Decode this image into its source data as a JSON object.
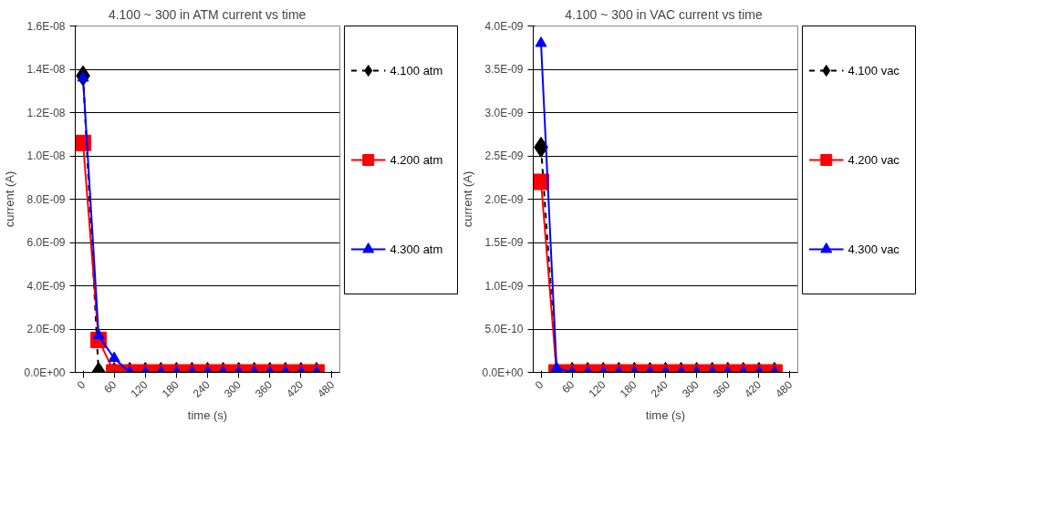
{
  "chart_data": [
    {
      "type": "line",
      "title": "4.100 ~ 300 in ATM current vs time",
      "xlabel": "time (s)",
      "ylabel": "current (A)",
      "x": [
        0,
        30,
        60,
        90,
        120,
        150,
        180,
        210,
        240,
        270,
        300,
        330,
        360,
        390,
        420,
        450
      ],
      "xlim": [
        -15,
        495
      ],
      "xticks": [
        0,
        60,
        120,
        180,
        240,
        300,
        360,
        420,
        480
      ],
      "ylim": [
        0,
        1.6e-08
      ],
      "yticks": [
        {
          "value": 0,
          "label": "0.0E+00"
        },
        {
          "value": 2e-09,
          "label": "2.0E-09"
        },
        {
          "value": 4e-09,
          "label": "4.0E-09"
        },
        {
          "value": 6e-09,
          "label": "6.0E-09"
        },
        {
          "value": 8e-09,
          "label": "8.0E-09"
        },
        {
          "value": 1e-08,
          "label": "1.0E-08"
        },
        {
          "value": 1.2e-08,
          "label": "1.2E-08"
        },
        {
          "value": 1.4e-08,
          "label": "1.4E-08"
        },
        {
          "value": 1.6e-08,
          "label": "1.6E-08"
        }
      ],
      "grid": "y",
      "legend": "right",
      "series": [
        {
          "name": "4.100 atm",
          "color": "#000000",
          "marker": "diamond",
          "line_style": "dashed",
          "values": [
            1.37e-08,
            0,
            0,
            0,
            0,
            0,
            0,
            0,
            0,
            0,
            0,
            0,
            0,
            0,
            0,
            0
          ]
        },
        {
          "name": "4.200 atm",
          "color": "#ff0000",
          "marker": "square",
          "line_style": "solid",
          "values": [
            1.06e-08,
            1.5e-09,
            0,
            0,
            0,
            0,
            0,
            0,
            0,
            0,
            0,
            0,
            0,
            0,
            0,
            0
          ]
        },
        {
          "name": "4.300 atm",
          "color": "#0000ff",
          "marker": "triangle",
          "line_style": "solid",
          "values": [
            1.36e-08,
            1.7e-09,
            6.5e-10,
            0,
            0,
            0,
            0,
            0,
            0,
            0,
            0,
            0,
            0,
            0,
            0,
            0
          ]
        }
      ]
    },
    {
      "type": "line",
      "title": "4.100 ~ 300  in VAC current vs time",
      "xlabel": "time (s)",
      "ylabel": "current (A)",
      "x": [
        0,
        30,
        60,
        90,
        120,
        150,
        180,
        210,
        240,
        270,
        300,
        330,
        360,
        390,
        420,
        450
      ],
      "xlim": [
        -15,
        495
      ],
      "xticks": [
        0,
        60,
        120,
        180,
        240,
        300,
        360,
        420,
        480
      ],
      "ylim": [
        0,
        4e-09
      ],
      "yticks": [
        {
          "value": 0,
          "label": "0.0E+00"
        },
        {
          "value": 5e-10,
          "label": "5.0E-10"
        },
        {
          "value": 1e-09,
          "label": "1.0E-09"
        },
        {
          "value": 1.5e-09,
          "label": "1.5E-09"
        },
        {
          "value": 2e-09,
          "label": "2.0E-09"
        },
        {
          "value": 2.5e-09,
          "label": "2.5E-09"
        },
        {
          "value": 3e-09,
          "label": "3.0E-09"
        },
        {
          "value": 3.5e-09,
          "label": "3.5E-09"
        },
        {
          "value": 4e-09,
          "label": "4.0E-09"
        }
      ],
      "grid": "y",
      "legend": "right",
      "series": [
        {
          "name": "4.100 vac",
          "color": "#000000",
          "marker": "diamond",
          "line_style": "dashed",
          "values": [
            2.6e-09,
            0,
            0,
            0,
            0,
            0,
            0,
            0,
            0,
            0,
            0,
            0,
            0,
            0,
            0,
            0
          ]
        },
        {
          "name": "4.200 vac",
          "color": "#ff0000",
          "marker": "square",
          "line_style": "solid",
          "values": [
            2.2e-09,
            0,
            0,
            0,
            0,
            0,
            0,
            0,
            0,
            0,
            0,
            0,
            0,
            0,
            0,
            0
          ]
        },
        {
          "name": "4.300 vac",
          "color": "#0000ff",
          "marker": "triangle",
          "line_style": "solid",
          "values": [
            3.8e-09,
            5e-11,
            0,
            0,
            0,
            0,
            0,
            0,
            0,
            0,
            0,
            0,
            0,
            0,
            0,
            0
          ]
        }
      ]
    }
  ]
}
